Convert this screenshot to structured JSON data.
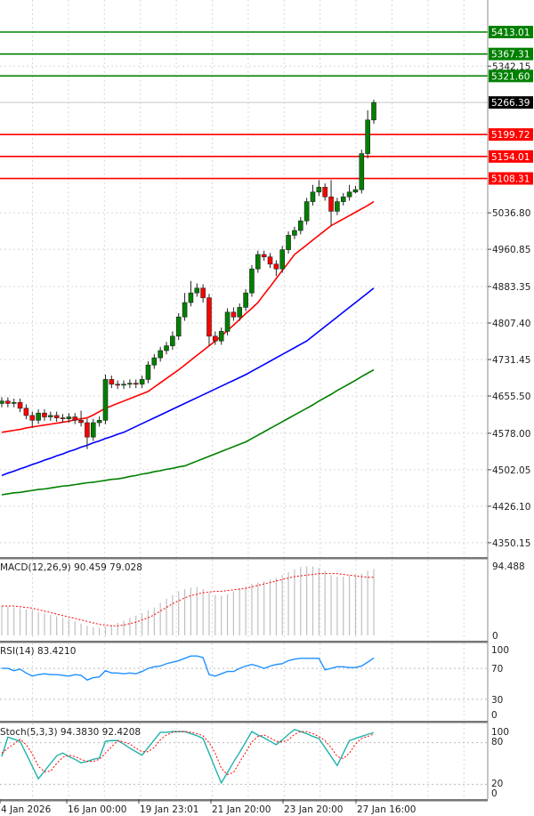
{
  "chart_data": {
    "type": "candlestick",
    "price_axis": {
      "ticks": [
        "5342.15",
        "5036.80",
        "4960.85",
        "4883.35",
        "4807.40",
        "4731.45",
        "4655.50",
        "4578.00",
        "4502.05",
        "4426.10",
        "4350.15"
      ],
      "tick_values": [
        5342.15,
        5036.8,
        4960.85,
        4883.35,
        4807.4,
        4731.45,
        4655.5,
        4578.0,
        4502.05,
        4426.1,
        4350.15
      ],
      "current_price": "5266.39"
    },
    "levels": [
      {
        "label": "5413.01",
        "value": 5413.01,
        "color": "#008000"
      },
      {
        "label": "5367.31",
        "value": 5367.31,
        "color": "#008000"
      },
      {
        "label": "5321.60",
        "value": 5321.6,
        "color": "#008000"
      },
      {
        "label": "5199.72",
        "value": 5199.72,
        "color": "#ff0000"
      },
      {
        "label": "5154.01",
        "value": 5154.01,
        "color": "#ff0000"
      },
      {
        "label": "5108.31",
        "value": 5108.31,
        "color": "#ff0000"
      }
    ],
    "time_axis": [
      "4 Jan 2026",
      "16 Jan 00:00",
      "19 Jan 23:01",
      "21 Jan 20:00",
      "23 Jan 20:00",
      "27 Jan 16:00"
    ],
    "candles": {
      "open": [
        4640,
        4645,
        4640,
        4642,
        4630,
        4615,
        4605,
        4620,
        4612,
        4615,
        4610,
        4608,
        4612,
        4605,
        4600,
        4570,
        4600,
        4605,
        4690,
        4680,
        4678,
        4680,
        4682,
        4680,
        4690,
        4720,
        4735,
        4750,
        4760,
        4780,
        4820,
        4850,
        4870,
        4880,
        4860,
        4780,
        4770,
        4790,
        4830,
        4820,
        4840,
        4870,
        4920,
        4950,
        4945,
        4930,
        4920,
        4960,
        4990,
        5000,
        5020,
        5060,
        5080,
        5090,
        5070,
        5040,
        5060,
        5070,
        5080,
        5085,
        5160,
        5230
      ],
      "high": [
        4653,
        4653,
        4650,
        4650,
        4638,
        4623,
        4628,
        4628,
        4623,
        4623,
        4618,
        4620,
        4620,
        4625,
        4608,
        4608,
        4613,
        4700,
        4698,
        4688,
        4688,
        4690,
        4690,
        4698,
        4728,
        4743,
        4758,
        4768,
        4790,
        4828,
        4870,
        4895,
        4890,
        4888,
        4868,
        4790,
        4798,
        4838,
        4840,
        4848,
        4878,
        4928,
        4958,
        4958,
        4953,
        4938,
        4968,
        4998,
        5008,
        5028,
        5068,
        5095,
        5105,
        5098,
        5105,
        5068,
        5078,
        5095,
        5093,
        5168,
        5250,
        5272
      ],
      "low": [
        4632,
        4632,
        4632,
        4622,
        4607,
        4590,
        4597,
        4604,
        4604,
        4602,
        4600,
        4600,
        4597,
        4592,
        4545,
        4562,
        4592,
        4597,
        4672,
        4670,
        4670,
        4672,
        4672,
        4672,
        4682,
        4712,
        4727,
        4742,
        4752,
        4772,
        4812,
        4842,
        4862,
        4850,
        4760,
        4762,
        4762,
        4782,
        4812,
        4812,
        4832,
        4862,
        4912,
        4937,
        4922,
        4905,
        4912,
        4952,
        4982,
        4992,
        5012,
        5052,
        5072,
        5062,
        5010,
        5032,
        5052,
        5062,
        5077,
        5077,
        5150,
        5222
      ],
      "close": [
        4645,
        4640,
        4642,
        4630,
        4615,
        4605,
        4620,
        4612,
        4615,
        4610,
        4608,
        4612,
        4605,
        4600,
        4570,
        4600,
        4605,
        4690,
        4680,
        4678,
        4680,
        4682,
        4680,
        4690,
        4720,
        4735,
        4750,
        4760,
        4780,
        4820,
        4850,
        4870,
        4880,
        4860,
        4780,
        4770,
        4790,
        4830,
        4820,
        4840,
        4870,
        4920,
        4950,
        4945,
        4930,
        4920,
        4960,
        4990,
        5000,
        5020,
        5060,
        5080,
        5090,
        5070,
        5040,
        5060,
        5070,
        5080,
        5085,
        5160,
        5230,
        5266.39
      ],
      "up_color": "#008000",
      "down_color": "#ff0000"
    },
    "moving_averages": [
      {
        "color": "#ff0000",
        "values": [
          4580,
          4582,
          4584,
          4586,
          4589,
          4591,
          4593,
          4595,
          4597,
          4599,
          4601,
          4603,
          4606,
          4608,
          4610,
          4616,
          4623,
          4630,
          4635,
          4640,
          4645,
          4650,
          4655,
          4660,
          4665,
          4674,
          4683,
          4692,
          4701,
          4710,
          4720,
          4730,
          4740,
          4750,
          4760,
          4770,
          4780,
          4792,
          4803,
          4815,
          4827,
          4838,
          4850,
          4867,
          4883,
          4900,
          4917,
          4933,
          4950,
          4960,
          4970,
          4980,
          4990,
          5000,
          5010,
          5017,
          5024,
          5031,
          5038,
          5045,
          5052,
          5060
        ]
      },
      {
        "color": "#0000ff",
        "values": [
          4490,
          4495,
          4499,
          4504,
          4508,
          4513,
          4517,
          4522,
          4526,
          4531,
          4535,
          4540,
          4544,
          4549,
          4553,
          4558,
          4562,
          4567,
          4571,
          4576,
          4580,
          4586,
          4592,
          4598,
          4604,
          4610,
          4616,
          4622,
          4628,
          4634,
          4640,
          4646,
          4652,
          4658,
          4664,
          4670,
          4676,
          4682,
          4688,
          4694,
          4700,
          4707,
          4714,
          4721,
          4728,
          4735,
          4742,
          4749,
          4756,
          4763,
          4770,
          4780,
          4790,
          4800,
          4810,
          4820,
          4830,
          4840,
          4850,
          4860,
          4870,
          4880
        ]
      },
      {
        "color": "#008000",
        "values": [
          4450,
          4452,
          4454,
          4455,
          4457,
          4459,
          4461,
          4462,
          4464,
          4466,
          4468,
          4469,
          4471,
          4473,
          4475,
          4476,
          4478,
          4480,
          4482,
          4483,
          4485,
          4488,
          4490,
          4493,
          4495,
          4498,
          4500,
          4503,
          4505,
          4508,
          4510,
          4515,
          4520,
          4525,
          4530,
          4535,
          4540,
          4545,
          4550,
          4555,
          4560,
          4567,
          4574,
          4581,
          4588,
          4595,
          4602,
          4609,
          4616,
          4623,
          4630,
          4637,
          4645,
          4652,
          4659,
          4667,
          4674,
          4681,
          4688,
          4696,
          4703,
          4710
        ]
      }
    ],
    "macd": {
      "label": "MACD(12,26,9) 90.459 79.028",
      "axis_max": "94.488",
      "axis_min": "0",
      "histogram": [
        40,
        39,
        38,
        37,
        35,
        34,
        32,
        30,
        28,
        26,
        24,
        22,
        19,
        16,
        13,
        11,
        10,
        12,
        14,
        17,
        20,
        24,
        27,
        30,
        34,
        38,
        44,
        50,
        55,
        60,
        63,
        65,
        66,
        63,
        58,
        55,
        54,
        56,
        60,
        64,
        67,
        70,
        72,
        74,
        76,
        78,
        82,
        86,
        90,
        93,
        94,
        94,
        92,
        88,
        82,
        80,
        80,
        81,
        82,
        84,
        88,
        90.459
      ],
      "signal": [
        40,
        40,
        40,
        39,
        38,
        37,
        35,
        33,
        31,
        29,
        27,
        25,
        23,
        21,
        19,
        17,
        15,
        14,
        13,
        13,
        14,
        16,
        18,
        21,
        24,
        28,
        33,
        38,
        43,
        47,
        51,
        54,
        56,
        58,
        59,
        60,
        60,
        61,
        62,
        63,
        64,
        66,
        68,
        70,
        72,
        74,
        76,
        78,
        80,
        81,
        82,
        83,
        84,
        84,
        84,
        84,
        83,
        82,
        81,
        80,
        79,
        79.028
      ],
      "histogram_color": "#c0c0c0",
      "signal_color": "#ff0000"
    },
    "rsi": {
      "label": "RSI(14) 83.4210",
      "ticks": [
        "100",
        "70",
        "30",
        "0"
      ],
      "tick_values": [
        100,
        70,
        30,
        0
      ],
      "values": [
        70,
        70,
        67,
        69,
        64,
        60,
        62,
        63,
        62,
        62,
        61,
        60,
        62,
        61,
        55,
        58,
        59,
        67,
        64,
        64,
        63,
        64,
        63,
        66,
        70,
        72,
        73,
        76,
        78,
        80,
        83,
        86,
        86,
        84,
        62,
        60,
        63,
        66,
        66,
        70,
        73,
        75,
        73,
        70,
        73,
        75,
        76,
        80,
        82,
        83,
        83,
        83,
        83,
        68,
        70,
        72,
        72,
        71,
        71,
        73,
        78,
        83.421
      ],
      "color": "#1e90ff"
    },
    "stoch": {
      "label": "Stoch(5,3,3) 94.3830 92.4208",
      "ticks": [
        "100",
        "80",
        "20",
        "0"
      ],
      "tick_values": [
        100,
        80,
        20,
        0
      ],
      "k": [
        60,
        88,
        85,
        82,
        64,
        46,
        28,
        39,
        50,
        61,
        65,
        60,
        56,
        51,
        53,
        56,
        58,
        82,
        83,
        83,
        78,
        72,
        67,
        62,
        73,
        84,
        95,
        95,
        96,
        96,
        96,
        93,
        90,
        86,
        65,
        43,
        22,
        37,
        52,
        66,
        81,
        96,
        91,
        87,
        82,
        77,
        84,
        92,
        99,
        96,
        93,
        89,
        86,
        73,
        60,
        47,
        65,
        83,
        86,
        89,
        92,
        94.383
      ],
      "d": [
        65,
        72,
        78,
        85,
        77,
        64,
        46,
        38,
        39,
        50,
        59,
        62,
        60,
        56,
        53,
        53,
        56,
        65,
        74,
        83,
        81,
        78,
        72,
        67,
        67,
        73,
        84,
        91,
        95,
        96,
        96,
        95,
        93,
        90,
        80,
        65,
        43,
        34,
        37,
        52,
        66,
        81,
        89,
        91,
        87,
        82,
        81,
        84,
        92,
        96,
        96,
        93,
        89,
        83,
        73,
        60,
        57,
        65,
        78,
        86,
        89,
        92.4208
      ],
      "k_color": "#20b2aa",
      "d_color": "#ff0000"
    }
  }
}
